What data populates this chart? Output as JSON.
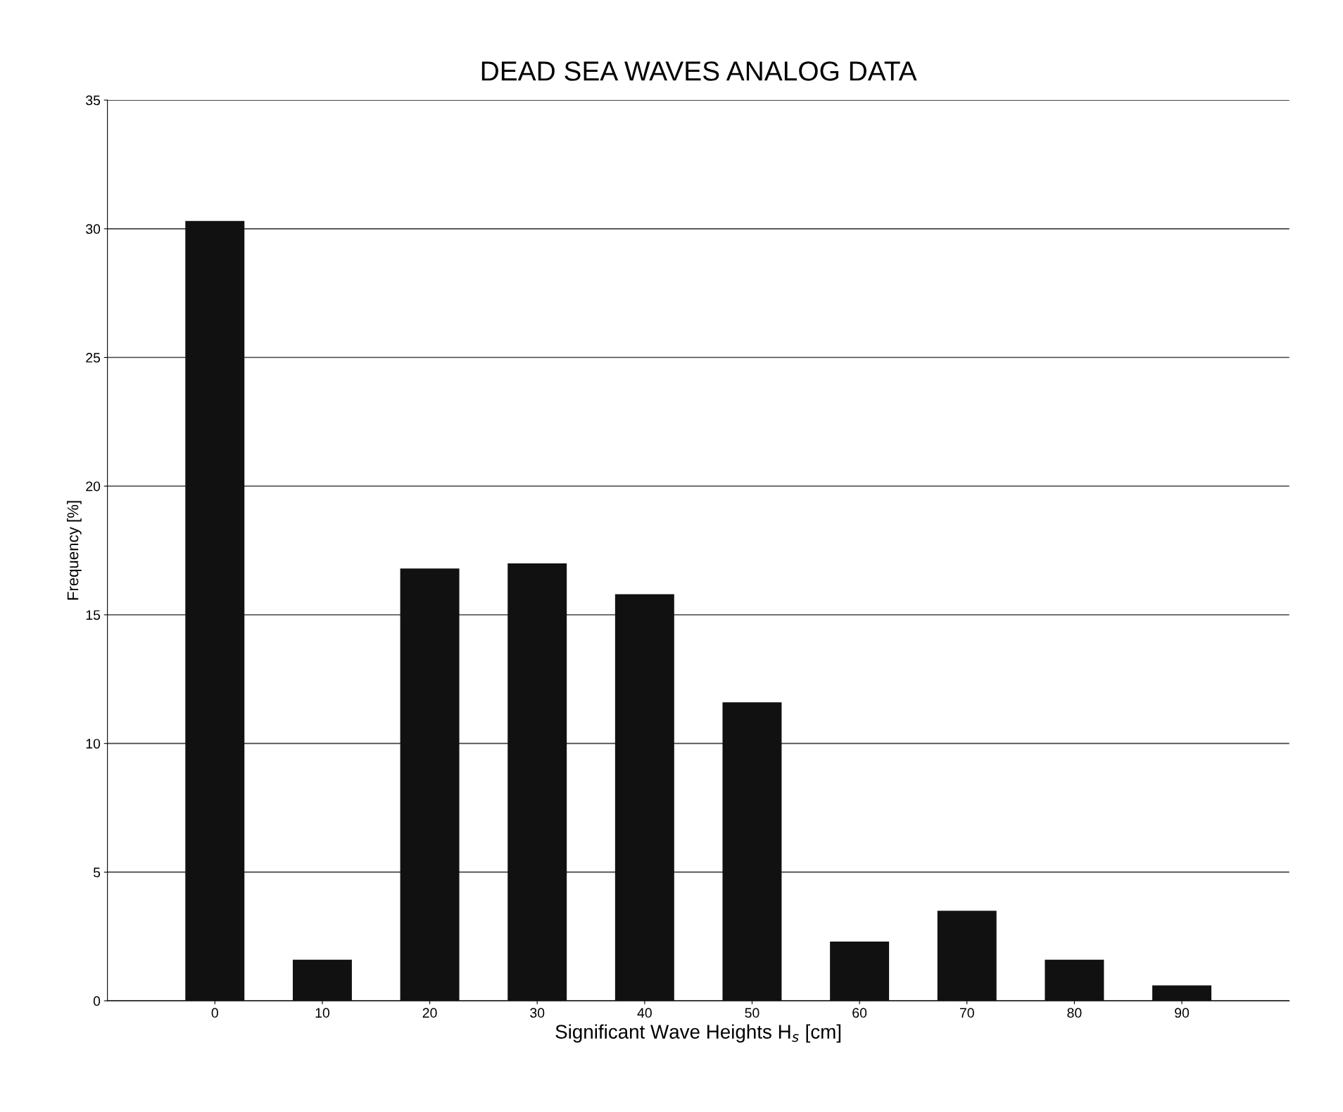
{
  "chart_data": {
    "type": "bar",
    "title": "DEAD SEA WAVES ANALOG DATA",
    "xlabel": "Significant Wave Heights H$_{s}$ [cm]",
    "ylabel": "Frequency [%]",
    "categories": [
      "0",
      "10",
      "20",
      "30",
      "40",
      "50",
      "60",
      "70",
      "80",
      "90"
    ],
    "values": [
      30.3,
      1.6,
      16.8,
      17.0,
      15.8,
      11.6,
      2.3,
      3.5,
      1.6,
      0.6
    ],
    "color": "#111111",
    "ylim": [
      0,
      35
    ],
    "yticks": [
      0,
      5,
      10,
      15,
      20,
      25,
      30,
      35
    ],
    "grid": "y",
    "legend": false
  }
}
